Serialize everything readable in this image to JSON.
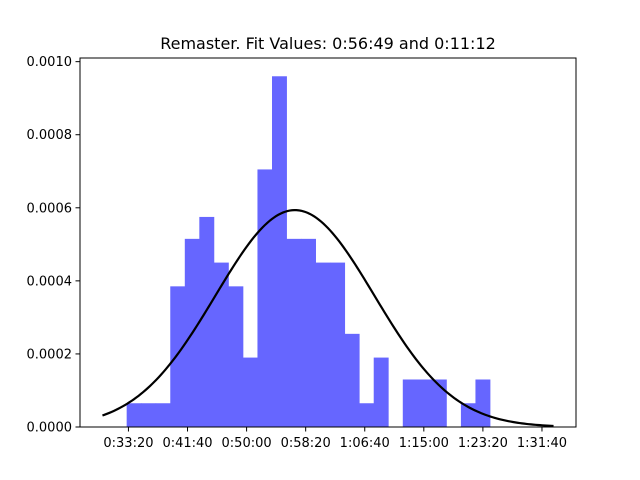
{
  "chart_data": {
    "type": "bar",
    "title": "Remaster. Fit Values: 0:56:49 and 0:11:12",
    "xlabel": "",
    "ylabel": "",
    "x_tick_labels": [
      "0:33:20",
      "0:41:40",
      "0:50:00",
      "0:58:20",
      "1:06:40",
      "1:15:00",
      "1:23:20",
      "1:31:40"
    ],
    "x_tick_values_seconds": [
      2000,
      2500,
      3000,
      3500,
      4000,
      4500,
      5000,
      5500
    ],
    "xlim_seconds": [
      1590,
      5788
    ],
    "y_tick_labels": [
      "0.0000",
      "0.0002",
      "0.0004",
      "0.0006",
      "0.0008",
      "0.0010"
    ],
    "y_tick_values": [
      0,
      0.0002,
      0.0004,
      0.0006,
      0.0008,
      0.001
    ],
    "ylim": [
      0,
      0.00101
    ],
    "bar_color": "#6666ff",
    "curve_color": "#000000",
    "bin_edges_seconds": [
      1985,
      2108,
      2231,
      2354,
      2477,
      2600,
      2723,
      2846,
      2969,
      3092,
      3215,
      3338,
      3461,
      3584,
      3707,
      3830,
      3953,
      4076,
      4199,
      4322,
      4445,
      4568,
      4691,
      4814,
      4937,
      5060,
      5183,
      5306,
      5429,
      5552
    ],
    "density_values": [
      6.5e-05,
      6.5e-05,
      6.5e-05,
      0.000385,
      0.000515,
      0.000575,
      0.00045,
      0.000385,
      0.00019,
      0.000705,
      0.00096,
      0.000515,
      0.000515,
      0.00045,
      0.00045,
      0.000255,
      6.5e-05,
      0.00019,
      0,
      0.00013,
      0.00013,
      0.00013,
      0,
      6.5e-05,
      0.00013,
      0,
      0,
      0,
      0
    ],
    "fit": {
      "type": "normal",
      "mean_seconds": 3409,
      "std_seconds": 672,
      "x_range_seconds": [
        1780,
        5598
      ]
    }
  }
}
